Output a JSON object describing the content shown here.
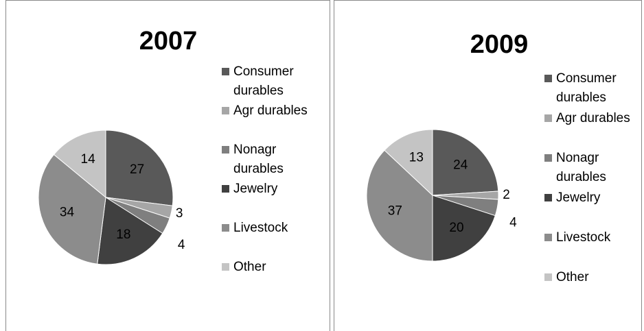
{
  "chart_data": [
    {
      "type": "pie",
      "title": "2007",
      "categories": [
        "Consumer durables",
        "Agr durables",
        "Nonagr durables",
        "Jewelry",
        "Livestock",
        "Other"
      ],
      "values": [
        27,
        3,
        4,
        18,
        34,
        14
      ],
      "colors": [
        "#595959",
        "#a6a6a6",
        "#7f7f7f",
        "#404040",
        "#8c8c8c",
        "#c4c4c4"
      ]
    },
    {
      "type": "pie",
      "title": "2009",
      "categories": [
        "Consumer durables",
        "Agr durables",
        "Nonagr durables",
        "Jewelry",
        "Livestock",
        "Other"
      ],
      "values": [
        24,
        2,
        4,
        20,
        37,
        13
      ],
      "colors": [
        "#595959",
        "#a6a6a6",
        "#7f7f7f",
        "#404040",
        "#8c8c8c",
        "#c4c4c4"
      ]
    }
  ]
}
